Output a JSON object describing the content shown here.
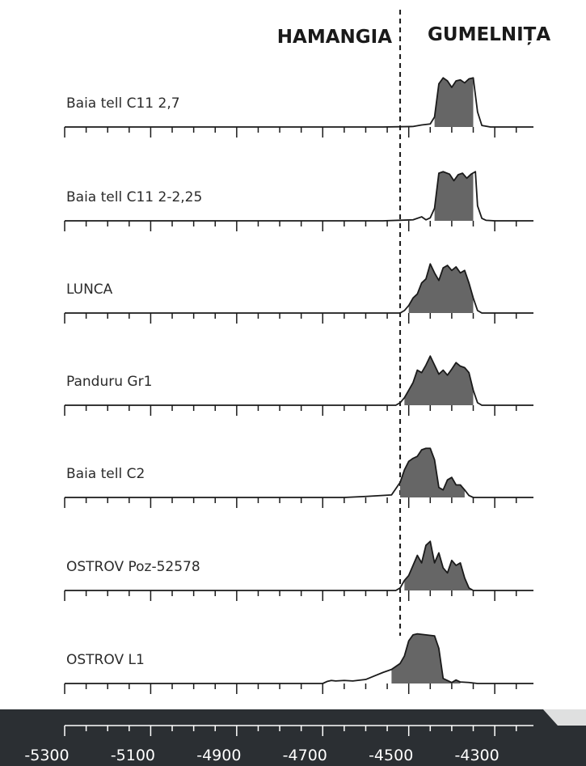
{
  "chart_data": {
    "type": "area",
    "title": "",
    "xlabel": "",
    "ylabel": "",
    "periods": [
      {
        "name": "HAMANGIA"
      },
      {
        "name": "GUMELNIȚA"
      }
    ],
    "boundary_x": -4520,
    "xlim": [
      -5300,
      -4210
    ],
    "x_ticks": [
      -5300,
      -5100,
      -4900,
      -4700,
      -4500,
      -4300
    ],
    "axis_background": "#2b2f33",
    "fill_color": "#666666",
    "line_color": "#1a1a1a",
    "series": [
      {
        "name": "Baia tell C11 2,7",
        "hpd_range": [
          -4440,
          -4350
        ],
        "curve": [
          [
            -4560,
            0
          ],
          [
            -4490,
            0.01
          ],
          [
            -4470,
            0.04
          ],
          [
            -4450,
            0.06
          ],
          [
            -4440,
            0.2
          ],
          [
            -4430,
            0.86
          ],
          [
            -4420,
            0.98
          ],
          [
            -4410,
            0.92
          ],
          [
            -4400,
            0.79
          ],
          [
            -4390,
            0.92
          ],
          [
            -4380,
            0.94
          ],
          [
            -4370,
            0.88
          ],
          [
            -4360,
            0.96
          ],
          [
            -4350,
            0.98
          ],
          [
            -4340,
            0.3
          ],
          [
            -4330,
            0.03
          ],
          [
            -4310,
            0
          ]
        ]
      },
      {
        "name": "Baia tell C11 2-2,25",
        "hpd_range": [
          -4440,
          -4350
        ],
        "curve": [
          [
            -4560,
            0
          ],
          [
            -4490,
            0.02
          ],
          [
            -4470,
            0.08
          ],
          [
            -4460,
            0.02
          ],
          [
            -4450,
            0.06
          ],
          [
            -4440,
            0.25
          ],
          [
            -4430,
            0.95
          ],
          [
            -4420,
            0.98
          ],
          [
            -4405,
            0.93
          ],
          [
            -4395,
            0.8
          ],
          [
            -4385,
            0.92
          ],
          [
            -4375,
            0.95
          ],
          [
            -4365,
            0.85
          ],
          [
            -4355,
            0.93
          ],
          [
            -4345,
            0.98
          ],
          [
            -4340,
            0.3
          ],
          [
            -4330,
            0.05
          ],
          [
            -4320,
            0.01
          ],
          [
            -4300,
            0
          ]
        ]
      },
      {
        "name": "LUNCA",
        "hpd_range": [
          -4500,
          -4350
        ],
        "curve": [
          [
            -4520,
            0
          ],
          [
            -4510,
            0.05
          ],
          [
            -4500,
            0.15
          ],
          [
            -4490,
            0.3
          ],
          [
            -4480,
            0.38
          ],
          [
            -4470,
            0.6
          ],
          [
            -4460,
            0.68
          ],
          [
            -4450,
            0.98
          ],
          [
            -4440,
            0.8
          ],
          [
            -4430,
            0.65
          ],
          [
            -4420,
            0.9
          ],
          [
            -4410,
            0.95
          ],
          [
            -4400,
            0.85
          ],
          [
            -4390,
            0.92
          ],
          [
            -4380,
            0.8
          ],
          [
            -4370,
            0.85
          ],
          [
            -4360,
            0.6
          ],
          [
            -4350,
            0.3
          ],
          [
            -4340,
            0.05
          ],
          [
            -4330,
            0
          ]
        ]
      },
      {
        "name": "Panduru Gr1",
        "hpd_range": [
          -4510,
          -4350
        ],
        "curve": [
          [
            -4530,
            0
          ],
          [
            -4520,
            0.05
          ],
          [
            -4510,
            0.15
          ],
          [
            -4500,
            0.3
          ],
          [
            -4490,
            0.45
          ],
          [
            -4480,
            0.7
          ],
          [
            -4470,
            0.65
          ],
          [
            -4460,
            0.8
          ],
          [
            -4450,
            0.98
          ],
          [
            -4440,
            0.8
          ],
          [
            -4430,
            0.62
          ],
          [
            -4420,
            0.7
          ],
          [
            -4410,
            0.6
          ],
          [
            -4400,
            0.72
          ],
          [
            -4390,
            0.85
          ],
          [
            -4380,
            0.78
          ],
          [
            -4370,
            0.75
          ],
          [
            -4360,
            0.65
          ],
          [
            -4350,
            0.3
          ],
          [
            -4340,
            0.05
          ],
          [
            -4330,
            0
          ]
        ]
      },
      {
        "name": "Baia tell C2",
        "hpd_range": [
          -4520,
          -4370
        ],
        "curve": [
          [
            -4650,
            0
          ],
          [
            -4600,
            0.02
          ],
          [
            -4560,
            0.04
          ],
          [
            -4540,
            0.05
          ],
          [
            -4520,
            0.3
          ],
          [
            -4510,
            0.55
          ],
          [
            -4500,
            0.72
          ],
          [
            -4490,
            0.78
          ],
          [
            -4480,
            0.82
          ],
          [
            -4470,
            0.95
          ],
          [
            -4460,
            0.98
          ],
          [
            -4450,
            0.98
          ],
          [
            -4440,
            0.75
          ],
          [
            -4430,
            0.2
          ],
          [
            -4420,
            0.15
          ],
          [
            -4410,
            0.35
          ],
          [
            -4400,
            0.4
          ],
          [
            -4390,
            0.25
          ],
          [
            -4380,
            0.25
          ],
          [
            -4370,
            0.15
          ],
          [
            -4360,
            0.04
          ],
          [
            -4350,
            0
          ]
        ]
      },
      {
        "name": "OSTROV Poz-52578",
        "hpd_range": [
          -4510,
          -4350
        ],
        "curve": [
          [
            -4530,
            0
          ],
          [
            -4520,
            0.05
          ],
          [
            -4510,
            0.2
          ],
          [
            -4500,
            0.3
          ],
          [
            -4490,
            0.5
          ],
          [
            -4480,
            0.7
          ],
          [
            -4470,
            0.55
          ],
          [
            -4460,
            0.9
          ],
          [
            -4450,
            0.98
          ],
          [
            -4440,
            0.55
          ],
          [
            -4430,
            0.75
          ],
          [
            -4420,
            0.45
          ],
          [
            -4410,
            0.35
          ],
          [
            -4400,
            0.6
          ],
          [
            -4390,
            0.5
          ],
          [
            -4380,
            0.55
          ],
          [
            -4370,
            0.25
          ],
          [
            -4360,
            0.05
          ],
          [
            -4350,
            0
          ]
        ]
      },
      {
        "name": "OSTROV L1",
        "hpd_range": [
          -4540,
          -4380
        ],
        "curve": [
          [
            -4700,
            0
          ],
          [
            -4690,
            0.04
          ],
          [
            -4680,
            0.06
          ],
          [
            -4670,
            0.05
          ],
          [
            -4650,
            0.06
          ],
          [
            -4630,
            0.05
          ],
          [
            -4600,
            0.08
          ],
          [
            -4580,
            0.15
          ],
          [
            -4560,
            0.22
          ],
          [
            -4540,
            0.28
          ],
          [
            -4520,
            0.4
          ],
          [
            -4510,
            0.55
          ],
          [
            -4500,
            0.85
          ],
          [
            -4490,
            0.97
          ],
          [
            -4480,
            0.99
          ],
          [
            -4460,
            0.97
          ],
          [
            -4440,
            0.95
          ],
          [
            -4430,
            0.7
          ],
          [
            -4420,
            0.1
          ],
          [
            -4400,
            0.02
          ],
          [
            -4390,
            0.07
          ],
          [
            -4380,
            0.03
          ],
          [
            -4360,
            0.02
          ],
          [
            -4340,
            0
          ]
        ]
      }
    ]
  }
}
